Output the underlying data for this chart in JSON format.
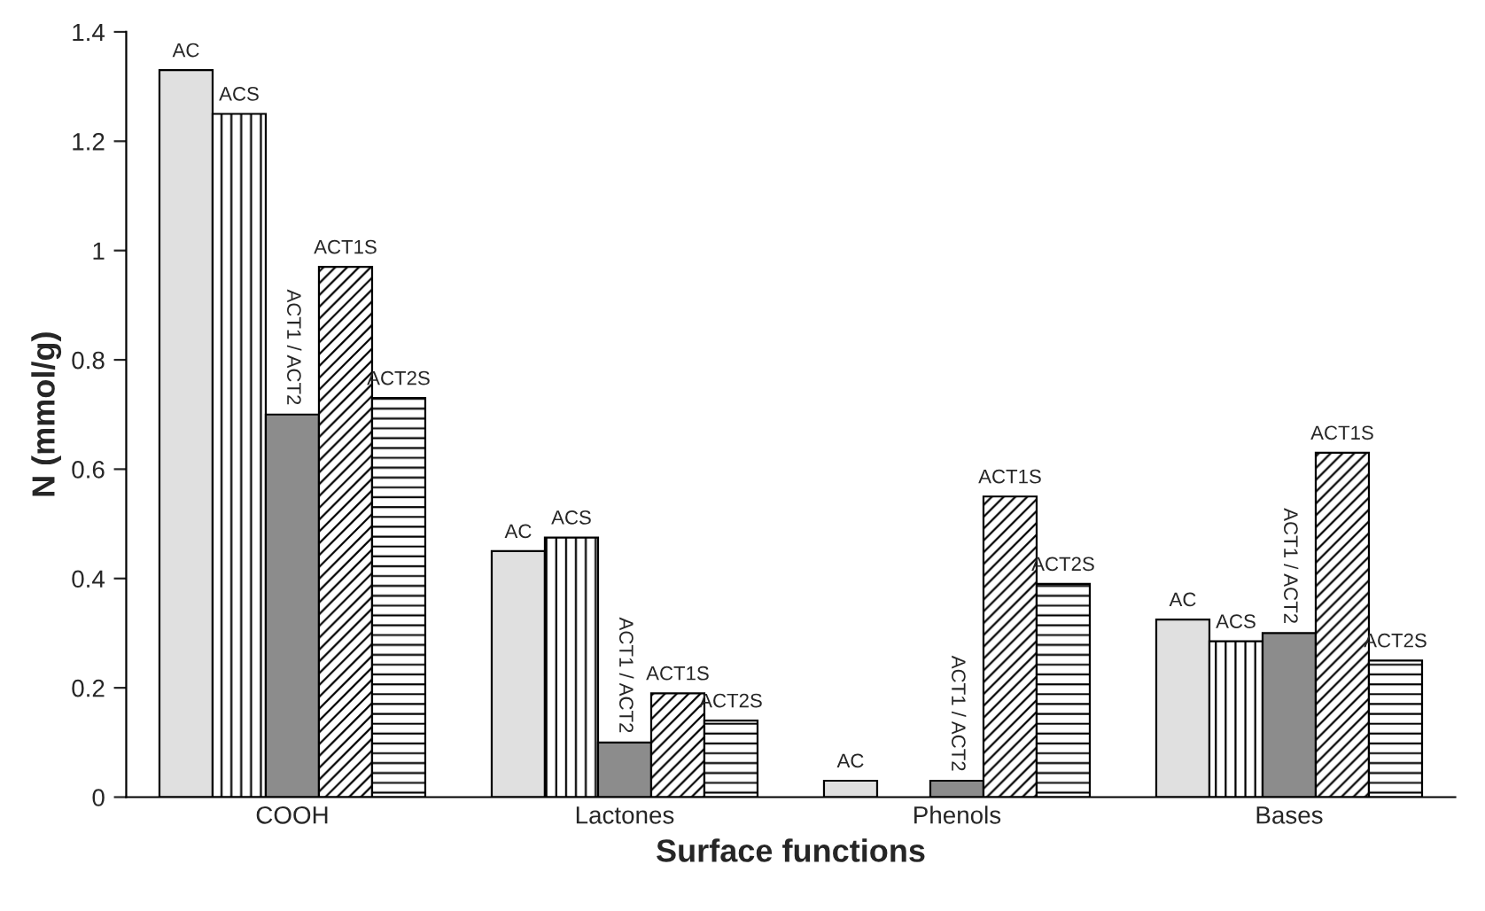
{
  "chart_data": {
    "type": "bar",
    "xlabel": "Surface functions",
    "ylabel": "N (mmol/g)",
    "categories": [
      "COOH",
      "Lactones",
      "Phenols",
      "Bases"
    ],
    "series": [
      {
        "name": "AC",
        "color": "#e0e0e0",
        "values": [
          1.33,
          0.45,
          0.03,
          0.325
        ]
      },
      {
        "name": "ACS",
        "color": "#000000",
        "values": [
          1.25,
          0.475,
          null,
          0.285
        ]
      },
      {
        "name": "ACT1 / ACT2",
        "color": "#8c8c8c",
        "values": [
          0.7,
          0.1,
          0.03,
          0.3
        ]
      },
      {
        "name": "ACT1S",
        "color": "#000000",
        "values": [
          0.97,
          0.19,
          0.55,
          0.63
        ]
      },
      {
        "name": "ACT2S",
        "color": "#000000",
        "values": [
          0.73,
          0.14,
          0.39,
          0.25
        ]
      }
    ],
    "ylim": [
      0,
      1.4
    ],
    "yticks": [
      0,
      0.2,
      0.4,
      0.6,
      0.8,
      1,
      1.2,
      1.4
    ],
    "grid": false,
    "legend": false
  }
}
